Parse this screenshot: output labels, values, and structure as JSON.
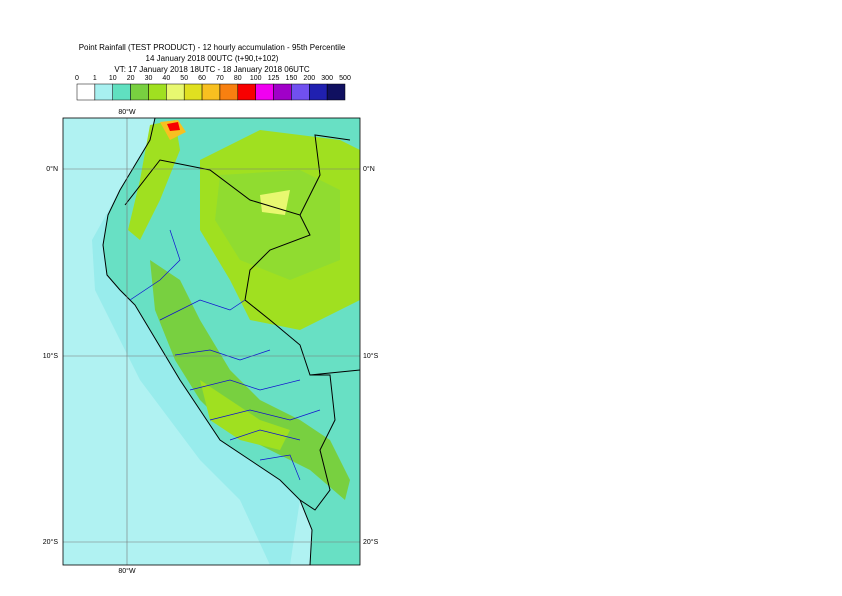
{
  "header": {
    "title": "Point Rainfall (TEST PRODUCT) - 12 hourly accumulation - 95th Percentile",
    "base_time": "14 January 2018 00UTC (t+90,t+102)",
    "valid_time": "VT: 17 January 2018 18UTC - 18 January 2018 06UTC"
  },
  "legend": {
    "thresholds": [
      0,
      1,
      10,
      20,
      30,
      40,
      50,
      60,
      70,
      80,
      100,
      125,
      150,
      200,
      300,
      500
    ],
    "colors": [
      "#ffffff",
      "#a8f0f0",
      "#60e0c0",
      "#78d040",
      "#a0e020",
      "#e8f870",
      "#e0e020",
      "#f8c020",
      "#f88010",
      "#f80000",
      "#f000f0",
      "#a000c8",
      "#7050f0",
      "#2020b0",
      "#101060"
    ]
  },
  "map": {
    "lon_label_top": "80°W",
    "lon_label_bottom": "80°W",
    "lat_labels_left": [
      "0°N",
      "10°S",
      "20°S"
    ],
    "lat_labels_right": [
      "0°N",
      "10°S",
      "20°S"
    ]
  }
}
